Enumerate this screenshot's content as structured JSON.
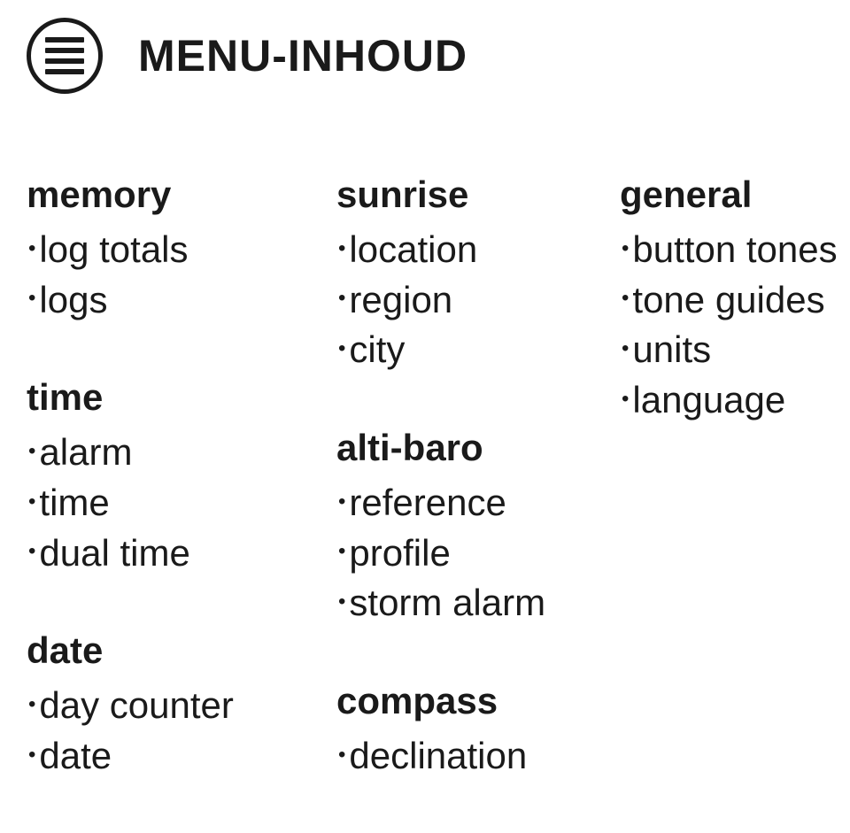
{
  "title": "MENU-INHOUD",
  "columns": [
    {
      "sections": [
        {
          "heading": "memory",
          "items": [
            "log totals",
            "logs"
          ]
        },
        {
          "heading": "time",
          "items": [
            "alarm",
            "time",
            "dual time"
          ]
        },
        {
          "heading": "date",
          "items": [
            "day counter",
            "date"
          ]
        }
      ]
    },
    {
      "sections": [
        {
          "heading": "sunrise",
          "items": [
            "location",
            "region",
            "city"
          ]
        },
        {
          "heading": "alti-baro",
          "items": [
            "reference",
            "profile",
            "storm alarm"
          ]
        },
        {
          "heading": "compass",
          "items": [
            "declination"
          ]
        }
      ]
    },
    {
      "sections": [
        {
          "heading": "general",
          "items": [
            "button tones",
            "tone guides",
            "units",
            "language"
          ]
        }
      ]
    }
  ]
}
